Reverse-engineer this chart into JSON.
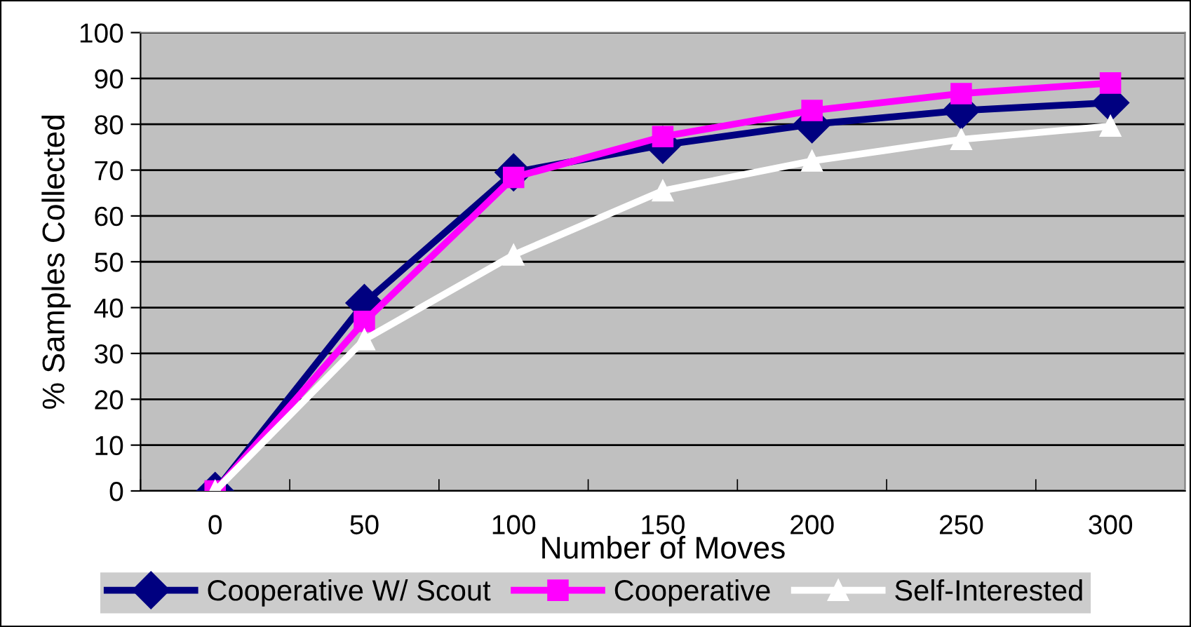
{
  "chart_data": {
    "type": "line",
    "xlabel": "Number of Moves",
    "ylabel": "% Samples Collected",
    "categories": [
      "0",
      "50",
      "100",
      "150",
      "200",
      "250",
      "300"
    ],
    "ylim": [
      0,
      100
    ],
    "yticks": [
      0,
      10,
      20,
      30,
      40,
      50,
      60,
      70,
      80,
      90,
      100
    ],
    "grid": "y",
    "legend": "bottom",
    "line_style": "solid",
    "series": [
      {
        "name": "Cooperative W/ Scout",
        "color": "#000080",
        "marker": "diamond",
        "values": [
          0,
          41,
          69.5,
          75.5,
          80,
          83,
          84.7
        ]
      },
      {
        "name": "Cooperative",
        "color": "#ff00ff",
        "marker": "square",
        "values": [
          0,
          37,
          68.4,
          77.3,
          83,
          86.7,
          89
        ]
      },
      {
        "name": "Self-Interested",
        "color": "#ffffff",
        "marker": "triangle",
        "values": [
          0,
          33,
          51.5,
          65.5,
          72,
          76.7,
          79.6
        ]
      }
    ]
  }
}
